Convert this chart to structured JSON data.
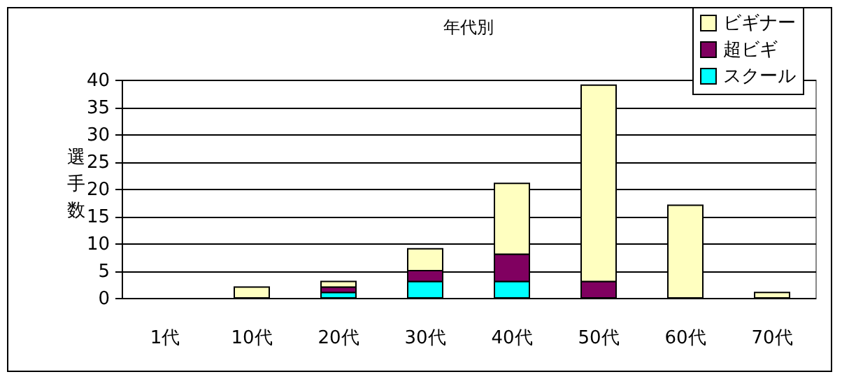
{
  "chart_data": {
    "type": "bar",
    "title": "年代別",
    "ylabel": "選手数",
    "categories": [
      "1代",
      "10代",
      "20代",
      "30代",
      "40代",
      "50代",
      "60代",
      "70代"
    ],
    "stacked": true,
    "series": [
      {
        "name": "スクール",
        "color": "#00ffff",
        "values": [
          0,
          0,
          1,
          3,
          3,
          0,
          0,
          0
        ]
      },
      {
        "name": "超ビギ",
        "color": "#800060",
        "values": [
          0,
          0,
          1,
          2,
          5,
          3,
          0,
          0
        ]
      },
      {
        "name": "ビギナー",
        "color": "#ffffc0",
        "values": [
          0,
          2,
          1,
          4,
          13,
          36,
          17,
          1
        ]
      }
    ],
    "ylim": [
      0,
      40
    ],
    "yticks": [
      0,
      5,
      10,
      15,
      20,
      25,
      30,
      35,
      40
    ],
    "grid": "y",
    "legend": "top right"
  }
}
